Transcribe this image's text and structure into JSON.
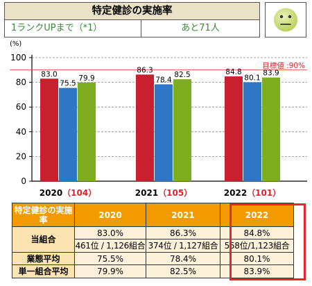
{
  "header": {
    "title": "特定健診の実施率",
    "rank_up": "1ランクUPまで（*1）",
    "remaining": "あと71人"
  },
  "status_icon": "neutral-face-icon",
  "colors": {
    "own_union": "#c8202f",
    "industry_avg": "#2f76c7",
    "single_union_avg": "#7ead1f",
    "target_line": "#d9534f",
    "header_fill": "#f39a00",
    "highlight_border": "#e8232c"
  },
  "chart_data": {
    "type": "bar",
    "ylabel": "(%)",
    "ylim": [
      0,
      100
    ],
    "yticks": [
      0,
      20,
      40,
      60,
      80,
      100
    ],
    "grid": "horizontal-dashed",
    "target": {
      "value": 90,
      "label": "目標値 :90%"
    },
    "categories": [
      {
        "year": "2020",
        "count": "（104）"
      },
      {
        "year": "2021",
        "count": "（105）"
      },
      {
        "year": "2022",
        "count": "（101）"
      }
    ],
    "series": [
      {
        "values": [
          83.0,
          86.3,
          84.8
        ]
      },
      {
        "values": [
          75.5,
          78.4,
          80.1
        ]
      },
      {
        "values": [
          79.9,
          82.5,
          83.9
        ]
      }
    ]
  },
  "table": {
    "corner_label": "特定健診の実施率",
    "years": [
      "2020",
      "2021",
      "2022"
    ],
    "rows": {
      "own": {
        "label": "当組合",
        "values": [
          "83.0%",
          "86.3%",
          "84.8%"
        ],
        "ranks": [
          "461位 / 1,126組合",
          "374位 / 1,127組合",
          "558位/1,123組合"
        ]
      },
      "industry": {
        "label": "業態平均",
        "values": [
          "75.5%",
          "78.4%",
          "80.1%"
        ]
      },
      "single": {
        "label": "単一組合平均",
        "values": [
          "79.9%",
          "82.5%",
          "83.9%"
        ]
      }
    }
  }
}
